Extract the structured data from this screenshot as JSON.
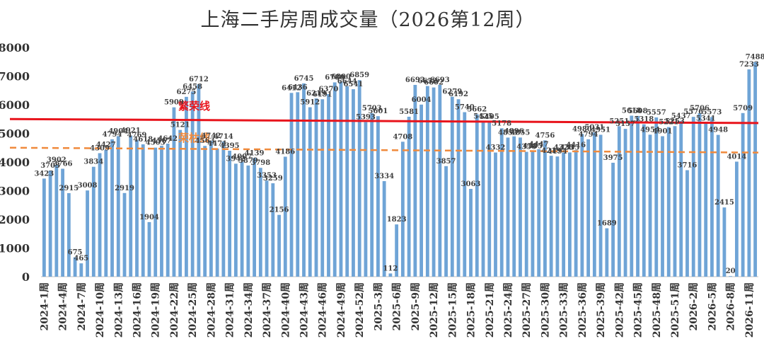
{
  "chart_data": {
    "type": "bar",
    "title": "上海二手房周成交量（2026第12周）",
    "xlabel": "",
    "ylabel": "",
    "ylim": [
      0,
      8000
    ],
    "yticks": [
      0,
      1000,
      2000,
      3000,
      4000,
      5000,
      6000,
      7000,
      8000
    ],
    "bar_color": "#6fa4d6",
    "categories": [
      "2024-1周",
      "2024-2周",
      "2024-3周",
      "2024-4周",
      "2024-5周",
      "2024-6周",
      "2024-7周",
      "2024-8周",
      "2024-9周",
      "2024-10周",
      "2024-11周",
      "2024-12周",
      "2024-13周",
      "2024-14周",
      "2024-15周",
      "2024-16周",
      "2024-17周",
      "2024-18周",
      "2024-19周",
      "2024-20周",
      "2024-21周",
      "2024-22周",
      "2024-23周",
      "2024-24周",
      "2024-25周",
      "2024-26周",
      "2024-27周",
      "2024-28周",
      "2024-29周",
      "2024-30周",
      "2024-31周",
      "2024-32周",
      "2024-33周",
      "2024-34周",
      "2024-35周",
      "2024-36周",
      "2024-37周",
      "2024-38周",
      "2024-39周",
      "2024-40周",
      "2024-41周",
      "2024-42周",
      "2024-43周",
      "2024-44周",
      "2024-45周",
      "2024-46周",
      "2024-47周",
      "2024-48周",
      "2024-49周",
      "2024-50周",
      "2024-51周",
      "2024-52周",
      "2025-1周",
      "2025-2周",
      "2025-3周",
      "2025-4周",
      "2025-5周",
      "2025-6周",
      "2025-7周",
      "2025-8周",
      "2025-9周",
      "2025-10周",
      "2025-11周",
      "2025-12周",
      "2025-13周",
      "2025-14周",
      "2025-15周",
      "2025-16周",
      "2025-17周",
      "2025-18周",
      "2025-19周",
      "2025-20周",
      "2025-21周",
      "2025-22周",
      "2025-23周",
      "2025-24周",
      "2025-25周",
      "2025-26周",
      "2025-27周",
      "2025-28周",
      "2025-29周",
      "2025-30周",
      "2025-31周",
      "2025-32周",
      "2025-33周",
      "2025-34周",
      "2025-35周",
      "2025-36周",
      "2025-37周",
      "2025-38周",
      "2025-39周",
      "2025-40周",
      "2025-41周",
      "2025-42周",
      "2025-43周",
      "2025-44周",
      "2025-45周",
      "2025-46周",
      "2025-47周",
      "2025-48周",
      "2025-49周",
      "2025-50周",
      "2025-51周",
      "2025-52周",
      "2026-1周",
      "2026-2周",
      "2026-3周",
      "2026-4周",
      "2026-5周",
      "2026-6周",
      "2026-7周",
      "2026-8周",
      "2026-9周",
      "2026-10周",
      "2026-11周",
      "2026-12周"
    ],
    "shown_tick_labels": [
      "2024-1周",
      "2024-4周",
      "2024-7周",
      "2024-10周",
      "2024-13周",
      "2024-16周",
      "2024-19周",
      "2024-22周",
      "2024-25周",
      "2024-28周",
      "2024-31周",
      "2024-34周",
      "2024-37周",
      "2024-40周",
      "2024-43周",
      "2024-46周",
      "2024-49周",
      "2024-52周",
      "2025-3周",
      "2025-6周",
      "2025-9周",
      "2025-12周",
      "2025-15周",
      "2025-18周",
      "2025-21周",
      "2025-24周",
      "2025-27周",
      "2025-30周",
      "2025-33周",
      "2025-36周",
      "2025-39周",
      "2025-42周",
      "2025-45周",
      "2025-48周",
      "2025-51周",
      "2026-2周",
      "2026-5周",
      "2026-8周",
      "2026-11周"
    ],
    "values": [
      3423,
      3703,
      3902,
      3766,
      2915,
      675,
      465,
      3008,
      3834,
      4309,
      4427,
      4794,
      4904,
      2919,
      4921,
      4769,
      4618,
      1904,
      4503,
      4567,
      4642,
      5909,
      5121,
      6275,
      6458,
      6712,
      4563,
      4742,
      4471,
      4714,
      4395,
      3942,
      4007,
      3879,
      4139,
      3798,
      3353,
      3259,
      2156,
      4186,
      6412,
      6436,
      6745,
      5912,
      6219,
      6191,
      6370,
      6780,
      6800,
      6644,
      6541,
      6859,
      5393,
      5703,
      5601,
      3334,
      112,
      1823,
      4708,
      5581,
      6692,
      6004,
      6652,
      6602,
      6693,
      3857,
      6279,
      6192,
      5740,
      3063,
      5662,
      5425,
      5405,
      4332,
      5178,
      4853,
      4896,
      4855,
      4356,
      4385,
      4447,
      4756,
      4219,
      4194,
      4328,
      4335,
      4416,
      4980,
      4794,
      5031,
      4951,
      1689,
      3975,
      5251,
      5157,
      5618,
      5608,
      5318,
      4954,
      5557,
      4901,
      5221,
      5253,
      5437,
      3716,
      5576,
      5706,
      5341,
      5573,
      4948,
      2415,
      20,
      4014,
      5709,
      7233,
      7488
    ],
    "annotations": [
      {
        "text": "繁荣线",
        "color": "#e8141c",
        "y_start": 5500,
        "y_end": 5360,
        "line_style": "solid"
      },
      {
        "text": "荣枯线",
        "color": "#f08a3c",
        "y_start": 4500,
        "y_end": 4330,
        "line_style": "dashed"
      }
    ]
  }
}
